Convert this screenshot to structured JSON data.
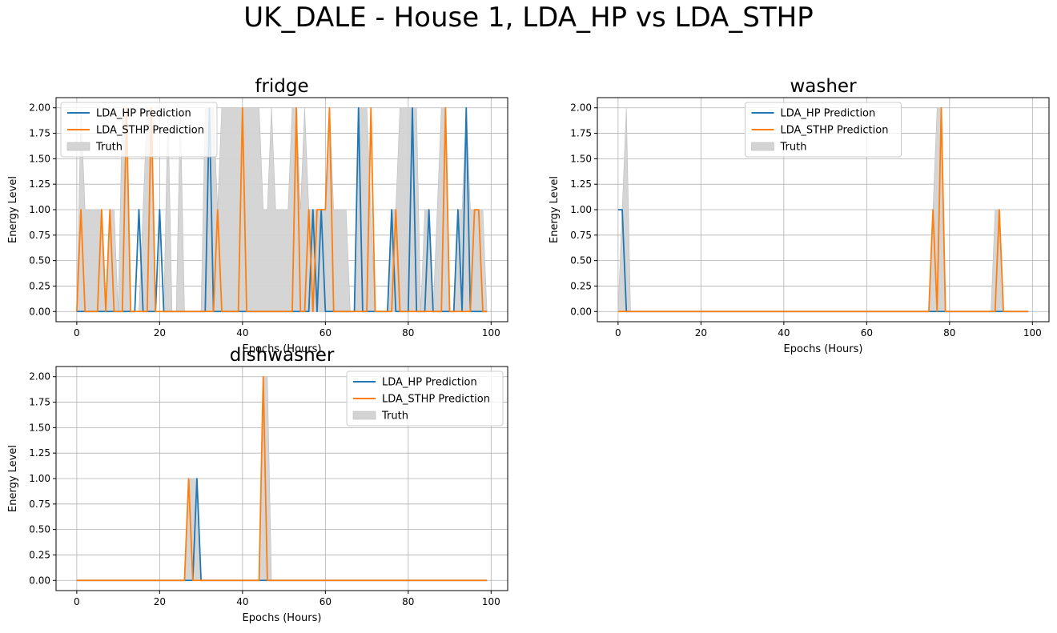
{
  "figure_title": "UK_DALE - House 1, LDA_HP vs LDA_STHP",
  "colors": {
    "hp": "#1f77b4",
    "sthp": "#ff7f0e",
    "truth": "#d3d3d3",
    "grid": "#b0b0b0"
  },
  "chart_data": [
    {
      "type": "line",
      "title": "fridge",
      "xlabel": "Epochs (Hours)",
      "ylabel": "Energy Level",
      "xlim": [
        -5,
        104
      ],
      "ylim": [
        -0.1,
        2.1
      ],
      "xticks": [
        0,
        20,
        40,
        60,
        80,
        100
      ],
      "yticks": [
        "0.00",
        "0.25",
        "0.50",
        "0.75",
        "1.00",
        "1.25",
        "1.50",
        "1.75",
        "2.00"
      ],
      "grid": true,
      "legend_position": "top-left",
      "legend": [
        "LDA_HP Prediction",
        "LDA_STHP Prediction",
        "Truth"
      ],
      "x_start": 0,
      "series": [
        {
          "name": "LDA_HP Prediction",
          "values": [
            0,
            0,
            0,
            0,
            0,
            0,
            0,
            0,
            0,
            0,
            0,
            0,
            0,
            0,
            0,
            1,
            0,
            0,
            0,
            0,
            1,
            0,
            0,
            0,
            0,
            0,
            0,
            0,
            0,
            0,
            0,
            0,
            2,
            0,
            0,
            0,
            0,
            0,
            0,
            0,
            0,
            0,
            0,
            0,
            0,
            0,
            0,
            0,
            0,
            0,
            0,
            0,
            0,
            0,
            0,
            0,
            0,
            1,
            0,
            1,
            0,
            0,
            0,
            0,
            0,
            0,
            0,
            0,
            2,
            0,
            0,
            0,
            0,
            0,
            0,
            0,
            1,
            0,
            0,
            0,
            0,
            2,
            0,
            0,
            0,
            1,
            0,
            0,
            0,
            0,
            0,
            0,
            1,
            0,
            2,
            0,
            0,
            0,
            0,
            0
          ]
        },
        {
          "name": "LDA_STHP Prediction",
          "values": [
            0,
            1,
            0,
            0,
            0,
            0,
            1,
            0,
            1,
            0,
            0,
            0,
            2,
            0,
            0,
            0,
            0,
            0,
            2,
            0,
            0,
            0,
            0,
            0,
            0,
            0,
            0,
            0,
            0,
            0,
            0,
            0,
            0,
            0,
            1,
            0,
            0,
            0,
            0,
            0,
            2,
            0,
            0,
            0,
            0,
            0,
            0,
            0,
            0,
            0,
            0,
            0,
            0,
            2,
            0,
            0,
            1,
            0,
            1,
            1,
            1,
            2,
            0,
            0,
            0,
            0,
            0,
            0,
            0,
            0,
            0,
            2,
            0,
            0,
            0,
            0,
            0,
            1,
            0,
            0,
            0,
            0,
            0,
            0,
            0,
            0,
            0,
            0,
            0,
            2,
            0,
            0,
            0,
            0,
            0,
            0,
            1,
            1,
            0,
            0
          ]
        },
        {
          "name": "Truth",
          "values": [
            0,
            2,
            1,
            1,
            1,
            1,
            1,
            0,
            1,
            1,
            0,
            2,
            2,
            0,
            0,
            0,
            1,
            2,
            2,
            0,
            0,
            0,
            2,
            0,
            0,
            2,
            0,
            0,
            0,
            0,
            0,
            2,
            2,
            2,
            1,
            2,
            2,
            2,
            2,
            2,
            2,
            2,
            2,
            2,
            2,
            1,
            1,
            2,
            1,
            1,
            1,
            1,
            2,
            2,
            1,
            2,
            1,
            1,
            1,
            1,
            1,
            2,
            1,
            1,
            1,
            1,
            0,
            0,
            2,
            2,
            2,
            1,
            0,
            0,
            0,
            0,
            1,
            1,
            2,
            2,
            2,
            2,
            2,
            0,
            1,
            1,
            0,
            1,
            2,
            2,
            0,
            0,
            1,
            1,
            2,
            1,
            1,
            1,
            1,
            0
          ]
        }
      ]
    },
    {
      "type": "line",
      "title": "washer",
      "xlabel": "Epochs (Hours)",
      "ylabel": "Energy Level",
      "xlim": [
        -5,
        104
      ],
      "ylim": [
        -0.1,
        2.1
      ],
      "xticks": [
        0,
        20,
        40,
        60,
        80,
        100
      ],
      "yticks": [
        "0.00",
        "0.25",
        "0.50",
        "0.75",
        "1.00",
        "1.25",
        "1.50",
        "1.75",
        "2.00"
      ],
      "grid": true,
      "legend_position": "top-center",
      "legend": [
        "LDA_HP Prediction",
        "LDA_STHP Prediction",
        "Truth"
      ],
      "x_start": 0,
      "series": [
        {
          "name": "LDA_HP Prediction",
          "values": [
            1,
            1,
            0,
            0,
            0,
            0,
            0,
            0,
            0,
            0,
            0,
            0,
            0,
            0,
            0,
            0,
            0,
            0,
            0,
            0,
            0,
            0,
            0,
            0,
            0,
            0,
            0,
            0,
            0,
            0,
            0,
            0,
            0,
            0,
            0,
            0,
            0,
            0,
            0,
            0,
            0,
            0,
            0,
            0,
            0,
            0,
            0,
            0,
            0,
            0,
            0,
            0,
            0,
            0,
            0,
            0,
            0,
            0,
            0,
            0,
            0,
            0,
            0,
            0,
            0,
            0,
            0,
            0,
            0,
            0,
            0,
            0,
            0,
            0,
            0,
            0,
            0,
            0,
            0,
            0,
            0,
            0,
            0,
            0,
            0,
            0,
            0,
            0,
            0,
            0,
            0,
            0,
            0,
            0,
            0,
            0,
            0,
            0,
            0,
            0
          ]
        },
        {
          "name": "LDA_STHP Prediction",
          "values": [
            0,
            0,
            0,
            0,
            0,
            0,
            0,
            0,
            0,
            0,
            0,
            0,
            0,
            0,
            0,
            0,
            0,
            0,
            0,
            0,
            0,
            0,
            0,
            0,
            0,
            0,
            0,
            0,
            0,
            0,
            0,
            0,
            0,
            0,
            0,
            0,
            0,
            0,
            0,
            0,
            0,
            0,
            0,
            0,
            0,
            0,
            0,
            0,
            0,
            0,
            0,
            0,
            0,
            0,
            0,
            0,
            0,
            0,
            0,
            0,
            0,
            0,
            0,
            0,
            0,
            0,
            0,
            0,
            0,
            0,
            0,
            0,
            0,
            0,
            0,
            0,
            1,
            0,
            2,
            0,
            0,
            0,
            0,
            0,
            0,
            0,
            0,
            0,
            0,
            0,
            0,
            0,
            1,
            0,
            0,
            0,
            0,
            0,
            0,
            0
          ]
        },
        {
          "name": "Truth",
          "values": [
            0,
            1,
            2,
            0,
            0,
            0,
            0,
            0,
            0,
            0,
            0,
            0,
            0,
            0,
            0,
            0,
            0,
            0,
            0,
            0,
            0,
            0,
            0,
            0,
            0,
            0,
            0,
            0,
            0,
            0,
            0,
            0,
            0,
            0,
            0,
            0,
            0,
            0,
            0,
            0,
            0,
            0,
            0,
            0,
            0,
            0,
            0,
            0,
            0,
            0,
            0,
            0,
            0,
            0,
            0,
            0,
            0,
            0,
            0,
            0,
            0,
            0,
            0,
            0,
            0,
            0,
            0,
            0,
            0,
            0,
            0,
            0,
            0,
            0,
            0,
            0,
            1,
            2,
            2,
            0,
            0,
            0,
            0,
            0,
            0,
            0,
            0,
            0,
            0,
            0,
            0,
            1,
            1,
            0,
            0,
            0,
            0,
            0,
            0,
            0
          ]
        }
      ]
    },
    {
      "type": "line",
      "title": "dishwasher",
      "xlabel": "Epochs (Hours)",
      "ylabel": "Energy Level",
      "xlim": [
        -5,
        104
      ],
      "ylim": [
        -0.1,
        2.1
      ],
      "xticks": [
        0,
        20,
        40,
        60,
        80,
        100
      ],
      "yticks": [
        "0.00",
        "0.25",
        "0.50",
        "0.75",
        "1.00",
        "1.25",
        "1.50",
        "1.75",
        "2.00"
      ],
      "grid": true,
      "legend_position": "top-right",
      "legend": [
        "LDA_HP Prediction",
        "LDA_STHP Prediction",
        "Truth"
      ],
      "x_start": 0,
      "series": [
        {
          "name": "LDA_HP Prediction",
          "values": [
            0,
            0,
            0,
            0,
            0,
            0,
            0,
            0,
            0,
            0,
            0,
            0,
            0,
            0,
            0,
            0,
            0,
            0,
            0,
            0,
            0,
            0,
            0,
            0,
            0,
            0,
            0,
            0,
            0,
            1,
            0,
            0,
            0,
            0,
            0,
            0,
            0,
            0,
            0,
            0,
            0,
            0,
            0,
            0,
            0,
            0,
            0,
            0,
            0,
            0,
            0,
            0,
            0,
            0,
            0,
            0,
            0,
            0,
            0,
            0,
            0,
            0,
            0,
            0,
            0,
            0,
            0,
            0,
            0,
            0,
            0,
            0,
            0,
            0,
            0,
            0,
            0,
            0,
            0,
            0,
            0,
            0,
            0,
            0,
            0,
            0,
            0,
            0,
            0,
            0,
            0,
            0,
            0,
            0,
            0,
            0,
            0,
            0,
            0,
            0
          ]
        },
        {
          "name": "LDA_STHP Prediction",
          "values": [
            0,
            0,
            0,
            0,
            0,
            0,
            0,
            0,
            0,
            0,
            0,
            0,
            0,
            0,
            0,
            0,
            0,
            0,
            0,
            0,
            0,
            0,
            0,
            0,
            0,
            0,
            0,
            1,
            0,
            0,
            0,
            0,
            0,
            0,
            0,
            0,
            0,
            0,
            0,
            0,
            0,
            0,
            0,
            0,
            0,
            2,
            0,
            0,
            0,
            0,
            0,
            0,
            0,
            0,
            0,
            0,
            0,
            0,
            0,
            0,
            0,
            0,
            0,
            0,
            0,
            0,
            0,
            0,
            0,
            0,
            0,
            0,
            0,
            0,
            0,
            0,
            0,
            0,
            0,
            0,
            0,
            0,
            0,
            0,
            0,
            0,
            0,
            0,
            0,
            0,
            0,
            0,
            0,
            0,
            0,
            0,
            0,
            0,
            0,
            0
          ]
        },
        {
          "name": "Truth",
          "values": [
            0,
            0,
            0,
            0,
            0,
            0,
            0,
            0,
            0,
            0,
            0,
            0,
            0,
            0,
            0,
            0,
            0,
            0,
            0,
            0,
            0,
            0,
            0,
            0,
            0,
            0,
            0,
            1,
            1,
            1,
            0,
            0,
            0,
            0,
            0,
            0,
            0,
            0,
            0,
            0,
            0,
            0,
            0,
            0,
            0,
            2,
            2,
            0,
            0,
            0,
            0,
            0,
            0,
            0,
            0,
            0,
            0,
            0,
            0,
            0,
            0,
            0,
            0,
            0,
            0,
            0,
            0,
            0,
            0,
            0,
            0,
            0,
            0,
            0,
            0,
            0,
            0,
            0,
            0,
            0,
            0,
            0,
            0,
            0,
            0,
            0,
            0,
            0,
            0,
            0,
            0,
            0,
            0,
            0,
            0,
            0,
            0,
            0,
            0,
            0
          ]
        }
      ]
    }
  ]
}
